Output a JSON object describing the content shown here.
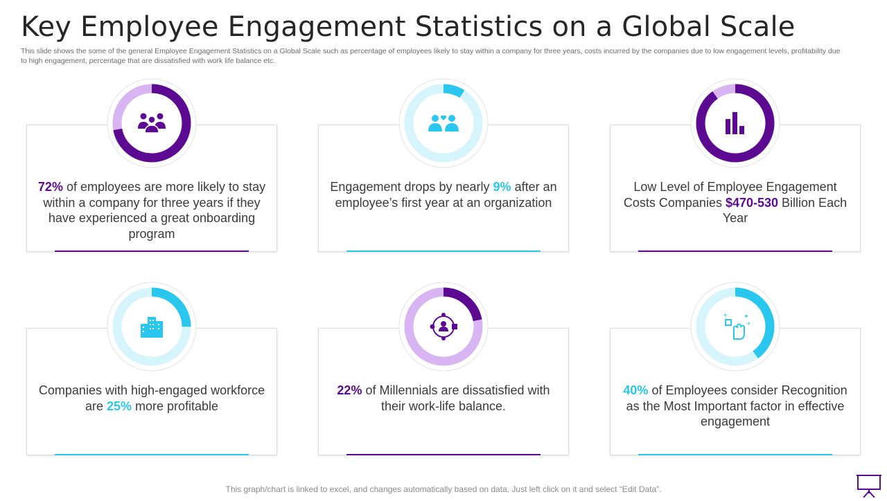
{
  "header": {
    "title": "Key Employee Engagement Statistics on a Global Scale",
    "subtitle": "This slide shows the some of the general Employee Engagement Statistics on a Global Scale such as percentage of employees likely to stay within a company for three years, costs incurred by the companies due to low engagement levels, profitability due to high engagement, percentage that are dissatisfied with work life balance etc."
  },
  "colors": {
    "purple_dark": "#5b0a91",
    "purple_light": "#d8b4f2",
    "cyan": "#29c6ee",
    "cyan_light": "#d6f4fc",
    "text": "#3a3a3a"
  },
  "cards": [
    {
      "pre": "",
      "highlight": "72%",
      "post": " of employees are more likely to stay within a company for three years if they have experienced a great onboarding program",
      "theme": "purple",
      "icon": "people-group-icon"
    },
    {
      "pre": "Engagement drops by nearly ",
      "highlight": "9%",
      "post": " after an employee’s first year at an organization",
      "theme": "cyan",
      "icon": "team-heart-icon"
    },
    {
      "pre": "Low Level of Employee Engagement Costs Companies ",
      "highlight": "$470-530",
      "post": " Billion Each Year",
      "theme": "purple",
      "icon": "bar-chart-icon"
    },
    {
      "pre": "Companies with high-engaged workforce are ",
      "highlight": "25%",
      "post": " more profitable",
      "theme": "cyan",
      "icon": "buildings-icon"
    },
    {
      "pre": "",
      "highlight": "22%",
      "post": " of Millennials are dissatisfied with their work-life balance.",
      "theme": "purple",
      "icon": "network-person-icon"
    },
    {
      "pre": "",
      "highlight": "40%",
      "post": " of Employees consider Recognition as the Most Important factor in effective engagement",
      "theme": "cyan",
      "icon": "recognition-hand-icon"
    }
  ],
  "chart_data": [
    {
      "type": "pie",
      "labels": [
        "Employees",
        "Remaining"
      ],
      "values": [
        72,
        28
      ]
    },
    {
      "type": "pie",
      "labels": [
        "Engagement drop",
        "Remaining"
      ],
      "values": [
        9,
        91
      ]
    },
    {
      "type": "pie",
      "labels": [
        "Cost",
        "Remaining"
      ],
      "values": [
        90,
        10
      ]
    },
    {
      "type": "pie",
      "labels": [
        "More profitable",
        "Remaining"
      ],
      "values": [
        25,
        75
      ]
    },
    {
      "type": "pie",
      "labels": [
        "Dissatisfied",
        "Remaining"
      ],
      "values": [
        22,
        78
      ]
    },
    {
      "type": "pie",
      "labels": [
        "Recognition",
        "Remaining"
      ],
      "values": [
        40,
        60
      ]
    }
  ],
  "footer": {
    "note": "This graph/chart is linked to excel, and changes automatically based on data. Just left click on it and select “Edit Data”."
  }
}
